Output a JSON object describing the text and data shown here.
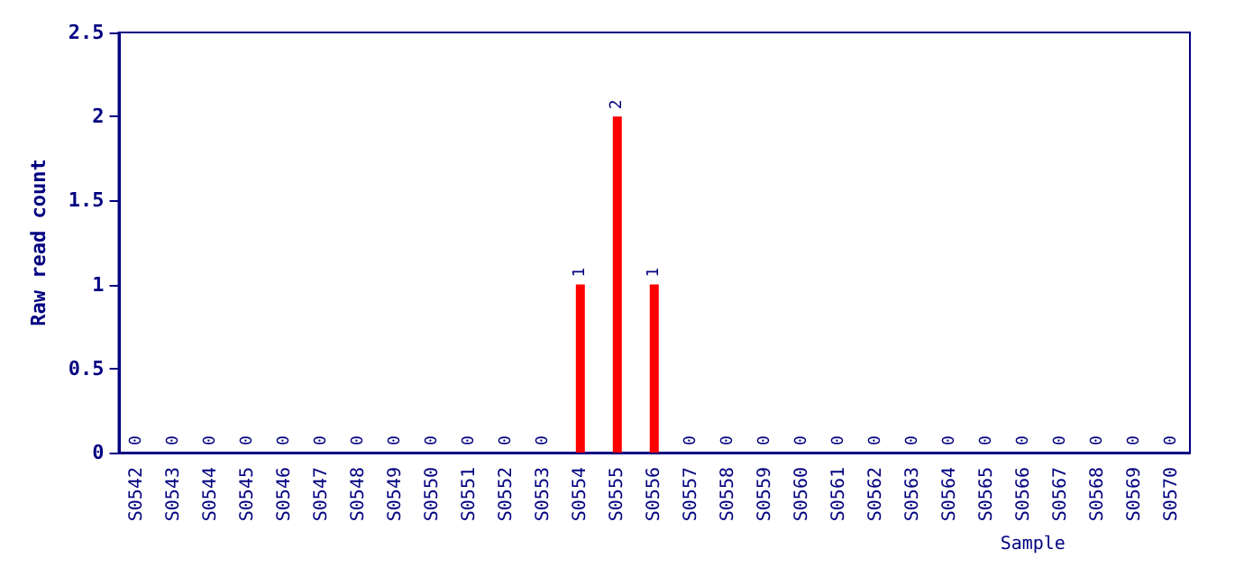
{
  "chart_data": {
    "type": "bar",
    "xlabel": "Sample",
    "ylabel": "Raw read count",
    "categories": [
      "S0542",
      "S0543",
      "S0544",
      "S0545",
      "S0546",
      "S0547",
      "S0548",
      "S0549",
      "S0550",
      "S0551",
      "S0552",
      "S0553",
      "S0554",
      "S0555",
      "S0556",
      "S0557",
      "S0558",
      "S0559",
      "S0560",
      "S0561",
      "S0562",
      "S0563",
      "S0564",
      "S0565",
      "S0566",
      "S0567",
      "S0568",
      "S0569",
      "S0570"
    ],
    "values": [
      0,
      0,
      0,
      0,
      0,
      0,
      0,
      0,
      0,
      0,
      0,
      0,
      1,
      2,
      1,
      0,
      0,
      0,
      0,
      0,
      0,
      0,
      0,
      0,
      0,
      0,
      0,
      0,
      0
    ],
    "color": "#ff0000",
    "ylim": [
      0,
      2.5
    ],
    "yticks": [
      0,
      0.5,
      1,
      1.5,
      2,
      2.5
    ],
    "grid": false,
    "data_labels": true
  }
}
